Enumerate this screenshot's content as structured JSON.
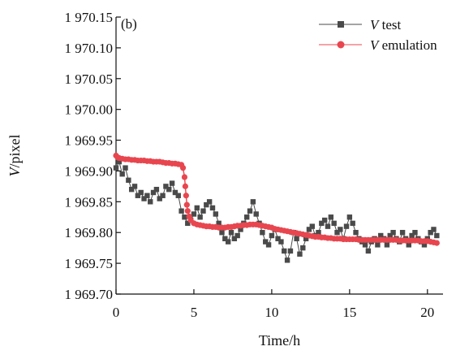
{
  "chart_data": {
    "type": "scatter",
    "panel_label": "(b)",
    "xlabel": "Time/h",
    "ylabel": "V/pixel",
    "ylabel_var": "V",
    "ylabel_unit": "/pixel",
    "xlim": [
      0,
      21
    ],
    "ylim": [
      1969.7,
      1970.15
    ],
    "x_ticks": [
      0,
      5,
      10,
      15,
      20
    ],
    "x_tick_labels": [
      "0",
      "5",
      "10",
      "15",
      "20"
    ],
    "y_ticks": [
      1969.7,
      1969.75,
      1969.8,
      1969.85,
      1969.9,
      1969.95,
      1970.0,
      1970.05,
      1970.1,
      1970.15
    ],
    "y_tick_labels": [
      "1 969.70",
      "1 969.75",
      "1 969.80",
      "1 969.85",
      "1 969.90",
      "1 969.95",
      "1 970.00",
      "1 970.05",
      "1 970.10",
      "1 970.15"
    ],
    "grid": false,
    "legend_position": "top-right",
    "series": [
      {
        "name": "V test",
        "name_var": "V",
        "name_rest": " test",
        "color": "#4a4a4a",
        "marker": "square",
        "points": [
          [
            0.0,
            1969.905
          ],
          [
            0.2,
            1969.915
          ],
          [
            0.4,
            1969.895
          ],
          [
            0.6,
            1969.905
          ],
          [
            0.8,
            1969.885
          ],
          [
            1.0,
            1969.87
          ],
          [
            1.2,
            1969.875
          ],
          [
            1.4,
            1969.86
          ],
          [
            1.6,
            1969.865
          ],
          [
            1.8,
            1969.855
          ],
          [
            2.0,
            1969.86
          ],
          [
            2.2,
            1969.85
          ],
          [
            2.4,
            1969.865
          ],
          [
            2.6,
            1969.87
          ],
          [
            2.8,
            1969.855
          ],
          [
            3.0,
            1969.86
          ],
          [
            3.2,
            1969.875
          ],
          [
            3.4,
            1969.87
          ],
          [
            3.6,
            1969.88
          ],
          [
            3.8,
            1969.865
          ],
          [
            4.0,
            1969.86
          ],
          [
            4.2,
            1969.835
          ],
          [
            4.4,
            1969.825
          ],
          [
            4.6,
            1969.815
          ],
          [
            4.8,
            1969.82
          ],
          [
            5.0,
            1969.83
          ],
          [
            5.2,
            1969.84
          ],
          [
            5.4,
            1969.825
          ],
          [
            5.6,
            1969.835
          ],
          [
            5.8,
            1969.845
          ],
          [
            6.0,
            1969.85
          ],
          [
            6.2,
            1969.84
          ],
          [
            6.4,
            1969.83
          ],
          [
            6.6,
            1969.815
          ],
          [
            6.8,
            1969.8
          ],
          [
            7.0,
            1969.79
          ],
          [
            7.2,
            1969.785
          ],
          [
            7.4,
            1969.8
          ],
          [
            7.6,
            1969.79
          ],
          [
            7.8,
            1969.795
          ],
          [
            8.0,
            1969.805
          ],
          [
            8.2,
            1969.815
          ],
          [
            8.4,
            1969.825
          ],
          [
            8.6,
            1969.835
          ],
          [
            8.8,
            1969.85
          ],
          [
            9.0,
            1969.83
          ],
          [
            9.2,
            1969.815
          ],
          [
            9.4,
            1969.8
          ],
          [
            9.6,
            1969.785
          ],
          [
            9.8,
            1969.78
          ],
          [
            10.0,
            1969.795
          ],
          [
            10.2,
            1969.805
          ],
          [
            10.4,
            1969.79
          ],
          [
            10.6,
            1969.785
          ],
          [
            10.8,
            1969.77
          ],
          [
            11.0,
            1969.755
          ],
          [
            11.2,
            1969.77
          ],
          [
            11.4,
            1969.8
          ],
          [
            11.6,
            1969.79
          ],
          [
            11.8,
            1969.765
          ],
          [
            12.0,
            1969.775
          ],
          [
            12.2,
            1969.79
          ],
          [
            12.4,
            1969.805
          ],
          [
            12.6,
            1969.81
          ],
          [
            12.8,
            1969.795
          ],
          [
            13.0,
            1969.8
          ],
          [
            13.2,
            1969.815
          ],
          [
            13.4,
            1969.82
          ],
          [
            13.6,
            1969.81
          ],
          [
            13.8,
            1969.825
          ],
          [
            14.0,
            1969.815
          ],
          [
            14.2,
            1969.8
          ],
          [
            14.4,
            1969.805
          ],
          [
            14.6,
            1969.79
          ],
          [
            14.8,
            1969.81
          ],
          [
            15.0,
            1969.825
          ],
          [
            15.2,
            1969.815
          ],
          [
            15.4,
            1969.8
          ],
          [
            15.6,
            1969.79
          ],
          [
            15.8,
            1969.785
          ],
          [
            16.0,
            1969.78
          ],
          [
            16.2,
            1969.77
          ],
          [
            16.4,
            1969.785
          ],
          [
            16.6,
            1969.79
          ],
          [
            16.8,
            1969.78
          ],
          [
            17.0,
            1969.795
          ],
          [
            17.2,
            1969.79
          ],
          [
            17.4,
            1969.78
          ],
          [
            17.6,
            1969.795
          ],
          [
            17.8,
            1969.8
          ],
          [
            18.0,
            1969.79
          ],
          [
            18.2,
            1969.785
          ],
          [
            18.4,
            1969.8
          ],
          [
            18.6,
            1969.79
          ],
          [
            18.8,
            1969.78
          ],
          [
            19.0,
            1969.795
          ],
          [
            19.2,
            1969.8
          ],
          [
            19.4,
            1969.79
          ],
          [
            19.6,
            1969.785
          ],
          [
            19.8,
            1969.78
          ],
          [
            20.0,
            1969.79
          ],
          [
            20.2,
            1969.8
          ],
          [
            20.4,
            1969.805
          ],
          [
            20.6,
            1969.795
          ]
        ]
      },
      {
        "name": "V emulation",
        "name_var": "V",
        "name_rest": " emulation",
        "color": "#e8464f",
        "marker": "circle",
        "points": [
          [
            0.0,
            1969.925
          ],
          [
            0.1,
            1969.922
          ],
          [
            0.2,
            1969.921
          ],
          [
            0.4,
            1969.92
          ],
          [
            0.6,
            1969.919
          ],
          [
            0.8,
            1969.919
          ],
          [
            1.0,
            1969.918
          ],
          [
            1.2,
            1969.918
          ],
          [
            1.4,
            1969.917
          ],
          [
            1.6,
            1969.917
          ],
          [
            1.8,
            1969.917
          ],
          [
            2.0,
            1969.916
          ],
          [
            2.2,
            1969.916
          ],
          [
            2.4,
            1969.915
          ],
          [
            2.6,
            1969.915
          ],
          [
            2.8,
            1969.915
          ],
          [
            3.0,
            1969.914
          ],
          [
            3.2,
            1969.913
          ],
          [
            3.4,
            1969.913
          ],
          [
            3.6,
            1969.912
          ],
          [
            3.8,
            1969.912
          ],
          [
            4.0,
            1969.911
          ],
          [
            4.2,
            1969.91
          ],
          [
            4.3,
            1969.905
          ],
          [
            4.4,
            1969.89
          ],
          [
            4.45,
            1969.875
          ],
          [
            4.5,
            1969.86
          ],
          [
            4.55,
            1969.845
          ],
          [
            4.6,
            1969.835
          ],
          [
            4.7,
            1969.826
          ],
          [
            4.8,
            1969.82
          ],
          [
            5.0,
            1969.815
          ],
          [
            5.2,
            1969.813
          ],
          [
            5.4,
            1969.812
          ],
          [
            5.6,
            1969.811
          ],
          [
            5.8,
            1969.81
          ],
          [
            6.0,
            1969.81
          ],
          [
            6.2,
            1969.809
          ],
          [
            6.4,
            1969.809
          ],
          [
            6.6,
            1969.808
          ],
          [
            6.8,
            1969.808
          ],
          [
            7.0,
            1969.808
          ],
          [
            7.2,
            1969.809
          ],
          [
            7.4,
            1969.809
          ],
          [
            7.6,
            1969.81
          ],
          [
            7.8,
            1969.811
          ],
          [
            8.0,
            1969.811
          ],
          [
            8.2,
            1969.812
          ],
          [
            8.4,
            1969.812
          ],
          [
            8.6,
            1969.813
          ],
          [
            8.8,
            1969.813
          ],
          [
            9.0,
            1969.813
          ],
          [
            9.2,
            1969.812
          ],
          [
            9.4,
            1969.811
          ],
          [
            9.6,
            1969.81
          ],
          [
            9.8,
            1969.809
          ],
          [
            10.0,
            1969.808
          ],
          [
            10.2,
            1969.806
          ],
          [
            10.4,
            1969.805
          ],
          [
            10.6,
            1969.804
          ],
          [
            10.8,
            1969.803
          ],
          [
            11.0,
            1969.802
          ],
          [
            11.2,
            1969.801
          ],
          [
            11.4,
            1969.8
          ],
          [
            11.6,
            1969.799
          ],
          [
            11.8,
            1969.798
          ],
          [
            12.0,
            1969.797
          ],
          [
            12.2,
            1969.796
          ],
          [
            12.4,
            1969.795
          ],
          [
            12.6,
            1969.794
          ],
          [
            12.8,
            1969.793
          ],
          [
            13.0,
            1969.793
          ],
          [
            13.2,
            1969.792
          ],
          [
            13.4,
            1969.792
          ],
          [
            13.6,
            1969.791
          ],
          [
            13.8,
            1969.791
          ],
          [
            14.0,
            1969.79
          ],
          [
            14.2,
            1969.79
          ],
          [
            14.4,
            1969.79
          ],
          [
            14.6,
            1969.789
          ],
          [
            14.8,
            1969.789
          ],
          [
            15.0,
            1969.789
          ],
          [
            15.2,
            1969.789
          ],
          [
            15.4,
            1969.789
          ],
          [
            15.6,
            1969.788
          ],
          [
            15.8,
            1969.788
          ],
          [
            16.0,
            1969.788
          ],
          [
            16.2,
            1969.788
          ],
          [
            16.4,
            1969.788
          ],
          [
            16.6,
            1969.788
          ],
          [
            16.8,
            1969.788
          ],
          [
            17.0,
            1969.788
          ],
          [
            17.2,
            1969.788
          ],
          [
            17.4,
            1969.788
          ],
          [
            17.6,
            1969.788
          ],
          [
            17.8,
            1969.788
          ],
          [
            18.0,
            1969.788
          ],
          [
            18.2,
            1969.787
          ],
          [
            18.4,
            1969.787
          ],
          [
            18.6,
            1969.787
          ],
          [
            18.8,
            1969.787
          ],
          [
            19.0,
            1969.787
          ],
          [
            19.2,
            1969.787
          ],
          [
            19.4,
            1969.787
          ],
          [
            19.6,
            1969.786
          ],
          [
            19.8,
            1969.786
          ],
          [
            20.0,
            1969.786
          ],
          [
            20.2,
            1969.785
          ],
          [
            20.4,
            1969.784
          ],
          [
            20.6,
            1969.783
          ]
        ]
      }
    ]
  }
}
